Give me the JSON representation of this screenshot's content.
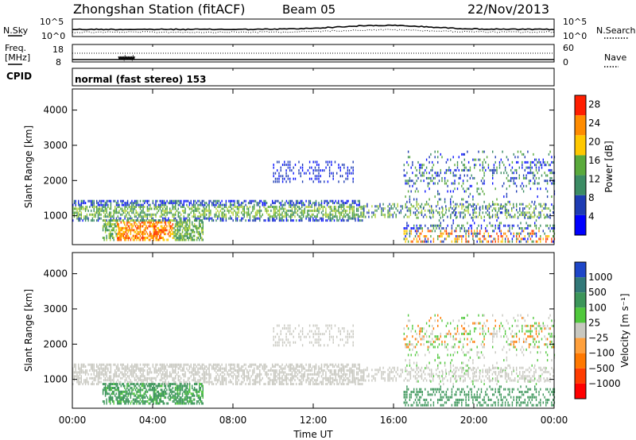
{
  "header": {
    "station": "Zhongshan Station (fitACF)",
    "beam": "Beam 05",
    "date": "22/Nov/2013"
  },
  "noise_panel": {
    "left_label": "N.Sky",
    "right_label": "N.Search",
    "left_ticks": [
      "10^5",
      "10^0"
    ],
    "right_ticks": [
      "10^5",
      "10^0"
    ]
  },
  "freq_panel": {
    "left_label_1": "Freq.",
    "left_label_2": "[MHz]",
    "right_label": "Nave",
    "left_ticks": [
      "18",
      "8"
    ],
    "right_ticks": [
      "60",
      "0"
    ]
  },
  "cpid": {
    "label": "CPID",
    "value": "normal (fast stereo) 153"
  },
  "chart_data": [
    {
      "type": "heatmap",
      "name": "power",
      "ylabel": "Slant Range [km]",
      "xlabel": "",
      "ylim": [
        180,
        4600
      ],
      "y_ticks": [
        "4000",
        "3000",
        "2000",
        "1000"
      ],
      "y_tick_values": [
        4000,
        3000,
        2000,
        1000
      ],
      "colorbar_label": "Power [dB]",
      "colorbar_ticks": [
        "28",
        "24",
        "20",
        "16",
        "12",
        "8",
        "4"
      ],
      "colorbar_tick_values": [
        28,
        24,
        20,
        16,
        12,
        8,
        4
      ],
      "colorbar_colors": [
        "#0000ff",
        "#1e3cb4",
        "#3c8c64",
        "#5aaa3c",
        "#ffc800",
        "#ff8c00",
        "#ff1e00"
      ],
      "colorbar_range": [
        0,
        30
      ]
    },
    {
      "type": "heatmap",
      "name": "velocity",
      "ylabel": "Slant Range [km]",
      "xlabel": "Time UT",
      "ylim": [
        180,
        4600
      ],
      "y_ticks": [
        "4000",
        "3000",
        "2000",
        "1000"
      ],
      "y_tick_values": [
        4000,
        3000,
        2000,
        1000
      ],
      "colorbar_label": "Velocity [m s⁻¹]",
      "colorbar_ticks": [
        "1000",
        "500",
        "100",
        "25",
        "−25",
        "−100",
        "−500",
        "−1000"
      ],
      "colorbar_colors": [
        "#1e46c8",
        "#327878",
        "#3c965a",
        "#50c83c",
        "#c8c8c0",
        "#ffa03c",
        "#ff7800",
        "#ff3c00",
        "#ff0000"
      ]
    }
  ],
  "time_axis": {
    "label": "Time UT",
    "ticks": [
      "00:00",
      "04:00",
      "08:00",
      "12:00",
      "16:00",
      "20:00",
      "00:00"
    ],
    "tick_hours": [
      0,
      4,
      8,
      12,
      16,
      20,
      24
    ],
    "range_hours": [
      0,
      24
    ]
  }
}
